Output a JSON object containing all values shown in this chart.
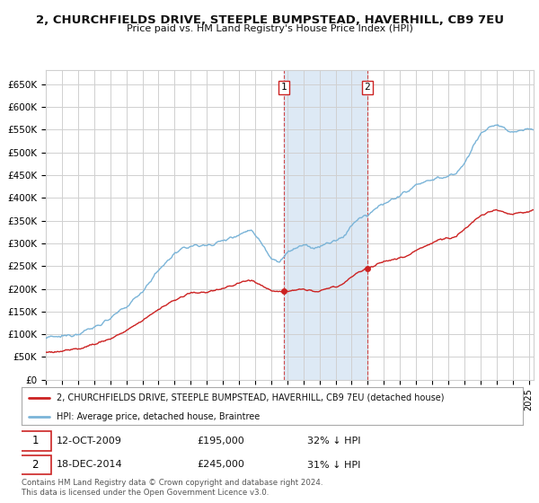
{
  "title": "2, CHURCHFIELDS DRIVE, STEEPLE BUMPSTEAD, HAVERHILL, CB9 7EU",
  "subtitle": "Price paid vs. HM Land Registry's House Price Index (HPI)",
  "ylim": [
    0,
    680000
  ],
  "yticks": [
    0,
    50000,
    100000,
    150000,
    200000,
    250000,
    300000,
    350000,
    400000,
    450000,
    500000,
    550000,
    600000,
    650000
  ],
  "ytick_labels": [
    "£0",
    "£50K",
    "£100K",
    "£150K",
    "£200K",
    "£250K",
    "£300K",
    "£350K",
    "£400K",
    "£450K",
    "£500K",
    "£550K",
    "£600K",
    "£650K"
  ],
  "hpi_color": "#7ab4d8",
  "price_color": "#cc2222",
  "bg_color": "#ffffff",
  "grid_color": "#d0d0d0",
  "highlight_bg": "#dde9f5",
  "sale1_date": "12-OCT-2009",
  "sale1_price": 195000,
  "sale1_hpi_label": "32% ↓ HPI",
  "sale1_x": 2009.79,
  "sale2_date": "18-DEC-2014",
  "sale2_price": 245000,
  "sale2_hpi_label": "31% ↓ HPI",
  "sale2_x": 2014.96,
  "legend_line1": "2, CHURCHFIELDS DRIVE, STEEPLE BUMPSTEAD, HAVERHILL, CB9 7EU (detached house)",
  "legend_line2": "HPI: Average price, detached house, Braintree",
  "footer": "Contains HM Land Registry data © Crown copyright and database right 2024.\nThis data is licensed under the Open Government Licence v3.0.",
  "xmin": 1995.0,
  "xmax": 2025.3
}
